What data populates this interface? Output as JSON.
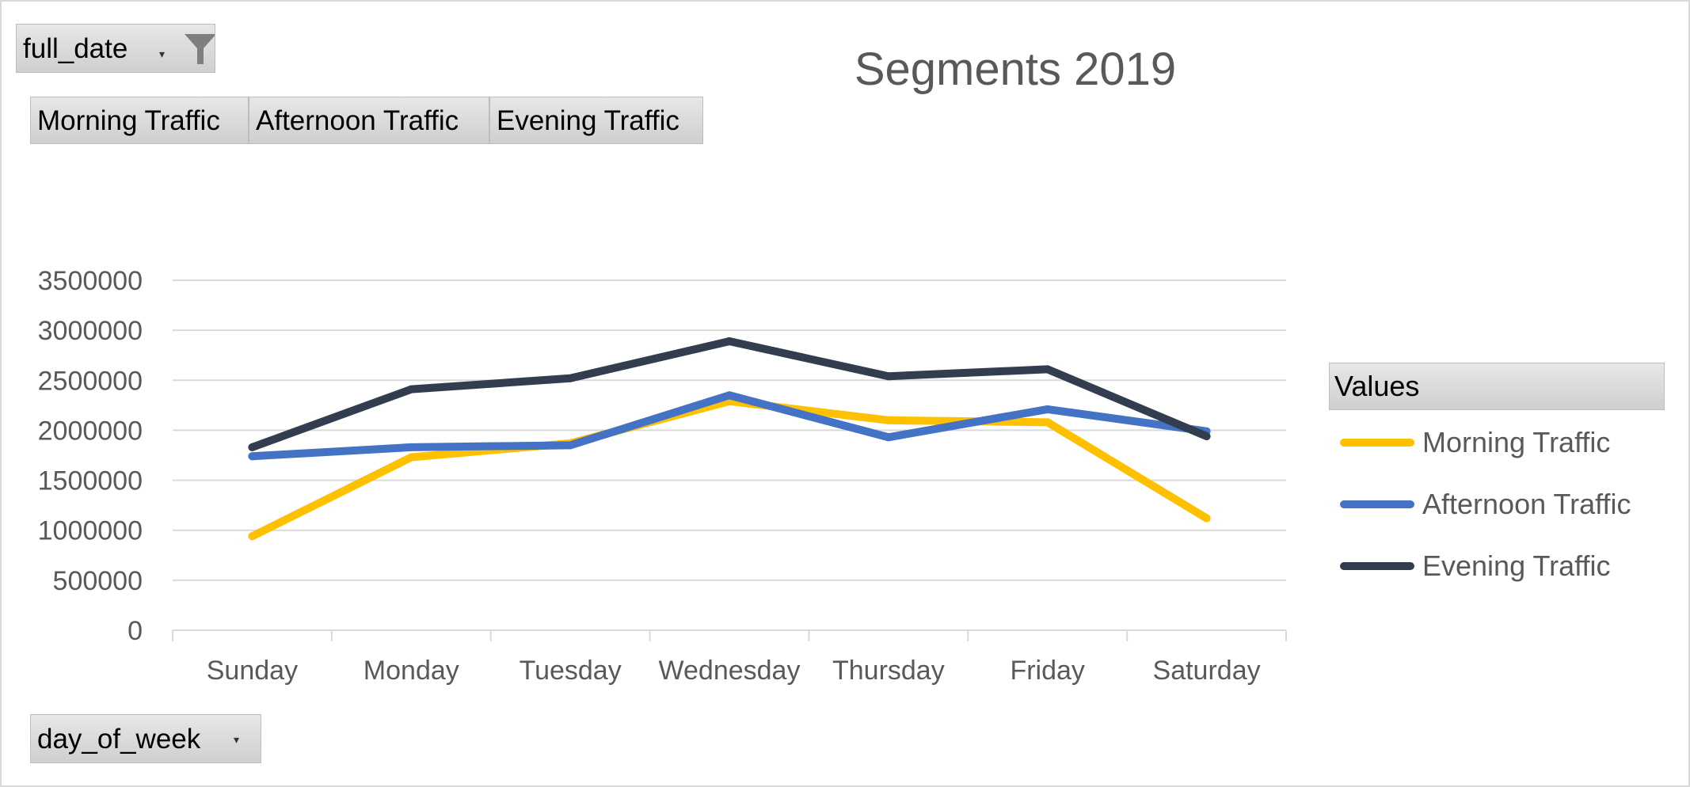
{
  "filters": {
    "report_filter": "full_date",
    "value_buttons": [
      "Morning Traffic",
      "Afternoon Traffic",
      "Evening Traffic"
    ],
    "axis_field": "day_of_week"
  },
  "legend": {
    "header": "Values"
  },
  "colors": {
    "morning": "#ffc000",
    "afternoon": "#4472c4",
    "evening": "#323e4f",
    "grid": "#d9d9d9",
    "text": "#595959"
  },
  "chart_data": {
    "type": "line",
    "title": "Segments 2019",
    "categories": [
      "Sunday",
      "Monday",
      "Tuesday",
      "Wednesday",
      "Thursday",
      "Friday",
      "Saturday"
    ],
    "series": [
      {
        "name": "Morning Traffic",
        "color": "#ffc000",
        "values": [
          940000,
          1730000,
          1870000,
          2290000,
          2100000,
          2080000,
          1120000
        ]
      },
      {
        "name": "Afternoon Traffic",
        "color": "#4472c4",
        "values": [
          1740000,
          1830000,
          1850000,
          2350000,
          1930000,
          2210000,
          1990000
        ]
      },
      {
        "name": "Evening Traffic",
        "color": "#323e4f",
        "values": [
          1830000,
          2410000,
          2520000,
          2890000,
          2540000,
          2610000,
          1940000
        ]
      }
    ],
    "yticks": [
      0,
      500000,
      1000000,
      1500000,
      2000000,
      2500000,
      3000000,
      3500000
    ],
    "ylim": [
      0,
      3500000
    ],
    "grid": true,
    "legend_position": "right"
  }
}
